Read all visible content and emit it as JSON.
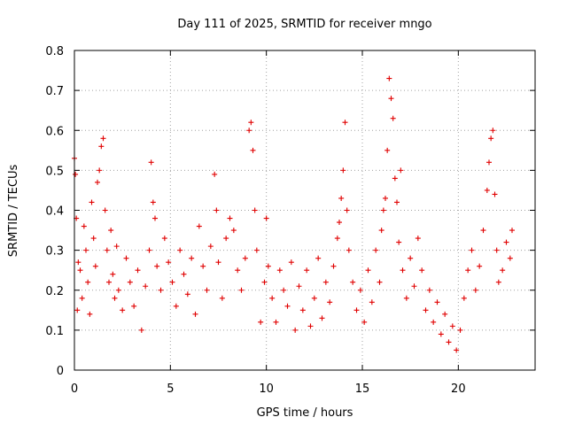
{
  "chart_data": {
    "type": "scatter",
    "title": "Day 111 of 2025, SRMTID for receiver mngo",
    "xlabel": "GPS time / hours",
    "ylabel": "SRMTID / TECUs",
    "xlim": [
      0,
      24
    ],
    "ylim": [
      0,
      0.8
    ],
    "x_ticks": [
      0,
      5,
      10,
      15,
      20
    ],
    "x_tick_labels": [
      "0",
      "5",
      "10",
      "15",
      "20"
    ],
    "y_ticks": [
      0,
      0.1,
      0.2,
      0.3,
      0.4,
      0.5,
      0.6,
      0.7,
      0.8
    ],
    "y_tick_labels": [
      "0",
      "0.1",
      "0.2",
      "0.3",
      "0.4",
      "0.5",
      "0.6",
      "0.7",
      "0.8"
    ],
    "grid": true,
    "marker": "+",
    "series": [
      {
        "name": "SRMTID",
        "color": "#e00000",
        "x": [
          0.0,
          0.05,
          0.1,
          0.15,
          0.2,
          0.3,
          0.4,
          0.5,
          0.6,
          0.7,
          0.8,
          0.9,
          1.0,
          1.1,
          1.2,
          1.3,
          1.4,
          1.5,
          1.6,
          1.7,
          1.8,
          1.9,
          2.0,
          2.1,
          2.2,
          2.3,
          2.5,
          2.7,
          2.9,
          3.1,
          3.3,
          3.5,
          3.7,
          3.9,
          4.0,
          4.1,
          4.2,
          4.3,
          4.5,
          4.7,
          4.9,
          5.1,
          5.3,
          5.5,
          5.7,
          5.9,
          6.1,
          6.3,
          6.5,
          6.7,
          6.9,
          7.1,
          7.3,
          7.4,
          7.5,
          7.7,
          7.9,
          8.1,
          8.3,
          8.5,
          8.7,
          8.9,
          9.1,
          9.2,
          9.3,
          9.4,
          9.5,
          9.7,
          9.9,
          10.0,
          10.1,
          10.3,
          10.5,
          10.7,
          10.9,
          11.1,
          11.3,
          11.5,
          11.7,
          11.9,
          12.1,
          12.3,
          12.5,
          12.7,
          12.9,
          13.1,
          13.3,
          13.5,
          13.7,
          13.8,
          13.9,
          14.0,
          14.1,
          14.2,
          14.3,
          14.5,
          14.7,
          14.9,
          15.1,
          15.3,
          15.5,
          15.7,
          15.9,
          16.0,
          16.1,
          16.2,
          16.3,
          16.4,
          16.5,
          16.6,
          16.7,
          16.8,
          16.9,
          17.0,
          17.1,
          17.3,
          17.5,
          17.7,
          17.9,
          18.1,
          18.3,
          18.5,
          18.7,
          18.9,
          19.1,
          19.3,
          19.5,
          19.7,
          19.9,
          20.1,
          20.3,
          20.5,
          20.7,
          20.9,
          21.1,
          21.3,
          21.5,
          21.6,
          21.7,
          21.8,
          21.9,
          22.0,
          22.1,
          22.3,
          22.5,
          22.7,
          22.8
        ],
        "y": [
          0.53,
          0.49,
          0.38,
          0.15,
          0.27,
          0.25,
          0.18,
          0.36,
          0.3,
          0.22,
          0.14,
          0.42,
          0.33,
          0.26,
          0.47,
          0.5,
          0.56,
          0.58,
          0.4,
          0.3,
          0.22,
          0.35,
          0.24,
          0.18,
          0.31,
          0.2,
          0.15,
          0.28,
          0.22,
          0.16,
          0.25,
          0.1,
          0.21,
          0.3,
          0.52,
          0.42,
          0.38,
          0.26,
          0.2,
          0.33,
          0.27,
          0.22,
          0.16,
          0.3,
          0.24,
          0.19,
          0.28,
          0.14,
          0.36,
          0.26,
          0.2,
          0.31,
          0.49,
          0.4,
          0.27,
          0.18,
          0.33,
          0.38,
          0.35,
          0.25,
          0.2,
          0.28,
          0.6,
          0.62,
          0.55,
          0.4,
          0.3,
          0.12,
          0.22,
          0.38,
          0.26,
          0.18,
          0.12,
          0.25,
          0.2,
          0.16,
          0.27,
          0.1,
          0.21,
          0.15,
          0.25,
          0.11,
          0.18,
          0.28,
          0.13,
          0.22,
          0.17,
          0.26,
          0.33,
          0.37,
          0.43,
          0.5,
          0.62,
          0.4,
          0.3,
          0.22,
          0.15,
          0.2,
          0.12,
          0.25,
          0.17,
          0.3,
          0.22,
          0.35,
          0.4,
          0.43,
          0.55,
          0.73,
          0.68,
          0.63,
          0.48,
          0.42,
          0.32,
          0.5,
          0.25,
          0.18,
          0.28,
          0.21,
          0.33,
          0.25,
          0.15,
          0.2,
          0.12,
          0.17,
          0.09,
          0.14,
          0.07,
          0.11,
          0.05,
          0.1,
          0.18,
          0.25,
          0.3,
          0.2,
          0.26,
          0.35,
          0.45,
          0.52,
          0.58,
          0.6,
          0.44,
          0.3,
          0.22,
          0.25,
          0.32,
          0.28,
          0.35
        ]
      }
    ]
  }
}
